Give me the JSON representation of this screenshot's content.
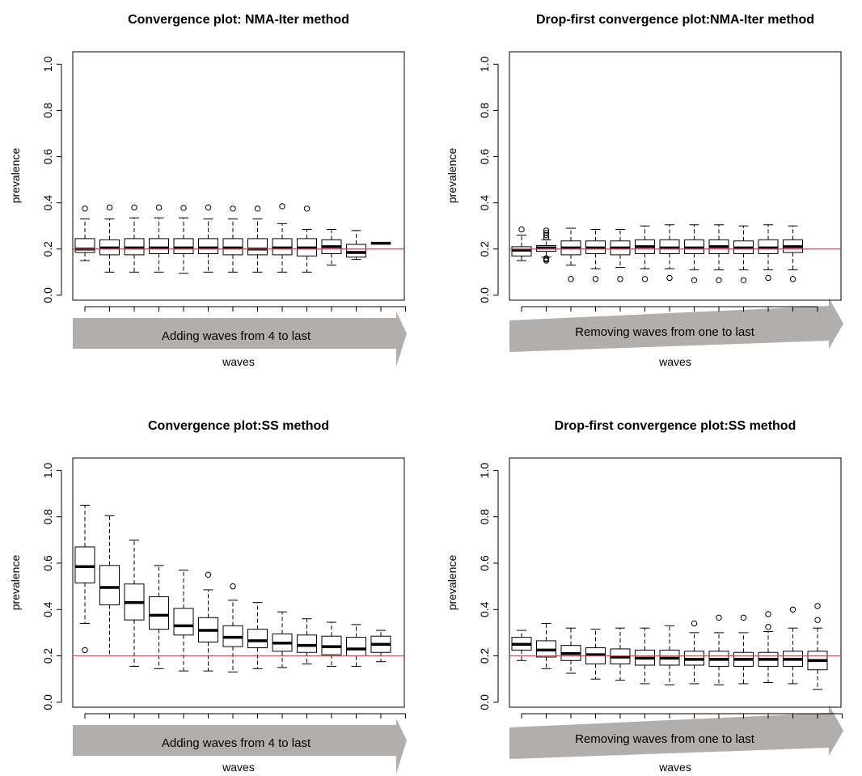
{
  "colors": {
    "reference_line": "#e0403a",
    "arrow_fill": "#b2aeac",
    "box_stroke": "#000000"
  },
  "chart_data": [
    {
      "type": "boxplot",
      "title": "Convergence plot: NMA-Iter method",
      "xlabel": "waves",
      "ylabel": "prevalence",
      "arrow_label": "Adding waves from 4 to last",
      "arrow_shape": "flat",
      "ylim": [
        0,
        1
      ],
      "yticks": [
        "0.0",
        "0.2",
        "0.4",
        "0.6",
        "0.8",
        "1.0"
      ],
      "reference_line": 0.2,
      "grid": false,
      "boxes": [
        {
          "lw": 0.15,
          "q1": 0.185,
          "med": 0.2,
          "q3": 0.245,
          "uw": 0.33,
          "out": [
            0.375
          ]
        },
        {
          "lw": 0.1,
          "q1": 0.175,
          "med": 0.205,
          "q3": 0.24,
          "uw": 0.33,
          "out": [
            0.38
          ]
        },
        {
          "lw": 0.1,
          "q1": 0.175,
          "med": 0.205,
          "q3": 0.245,
          "uw": 0.335,
          "out": [
            0.38
          ]
        },
        {
          "lw": 0.1,
          "q1": 0.18,
          "med": 0.205,
          "q3": 0.245,
          "uw": 0.335,
          "out": [
            0.38
          ]
        },
        {
          "lw": 0.095,
          "q1": 0.18,
          "med": 0.205,
          "q3": 0.245,
          "uw": 0.335,
          "out": [
            0.378
          ]
        },
        {
          "lw": 0.1,
          "q1": 0.18,
          "med": 0.205,
          "q3": 0.245,
          "uw": 0.33,
          "out": [
            0.38
          ]
        },
        {
          "lw": 0.1,
          "q1": 0.175,
          "med": 0.205,
          "q3": 0.245,
          "uw": 0.33,
          "out": [
            0.375
          ]
        },
        {
          "lw": 0.1,
          "q1": 0.175,
          "med": 0.2,
          "q3": 0.245,
          "uw": 0.33,
          "out": [
            0.375
          ]
        },
        {
          "lw": 0.1,
          "q1": 0.175,
          "med": 0.205,
          "q3": 0.245,
          "uw": 0.31,
          "out": [
            0.385
          ]
        },
        {
          "lw": 0.1,
          "q1": 0.17,
          "med": 0.205,
          "q3": 0.245,
          "uw": 0.285,
          "out": [
            0.375
          ]
        },
        {
          "lw": 0.13,
          "q1": 0.18,
          "med": 0.21,
          "q3": 0.24,
          "uw": 0.285,
          "out": []
        },
        {
          "lw": 0.155,
          "q1": 0.165,
          "med": 0.185,
          "q3": 0.22,
          "uw": 0.28,
          "out": []
        },
        {
          "lw": 0.225,
          "q1": 0.225,
          "med": 0.225,
          "q3": 0.225,
          "uw": 0.225,
          "out": []
        }
      ]
    },
    {
      "type": "boxplot",
      "title": "Drop-first convergence plot:NMA-Iter method",
      "xlabel": "waves",
      "ylabel": "prevalence",
      "arrow_label": "Removing waves from one to last",
      "arrow_shape": "taper",
      "ylim": [
        0,
        1
      ],
      "yticks": [
        "0.0",
        "0.2",
        "0.4",
        "0.6",
        "0.8",
        "1.0"
      ],
      "reference_line": 0.2,
      "grid": false,
      "boxes": [
        {
          "lw": 0.15,
          "q1": 0.17,
          "med": 0.195,
          "q3": 0.21,
          "uw": 0.26,
          "out": [
            0.285
          ]
        },
        {
          "lw": 0.165,
          "q1": 0.19,
          "med": 0.205,
          "q3": 0.215,
          "uw": 0.24,
          "out": [
            0.15,
            0.155,
            0.16,
            0.25,
            0.26,
            0.27,
            0.28
          ]
        },
        {
          "lw": 0.13,
          "q1": 0.175,
          "med": 0.205,
          "q3": 0.235,
          "uw": 0.29,
          "out": [
            0.07
          ]
        },
        {
          "lw": 0.115,
          "q1": 0.18,
          "med": 0.205,
          "q3": 0.235,
          "uw": 0.285,
          "out": [
            0.07
          ]
        },
        {
          "lw": 0.12,
          "q1": 0.175,
          "med": 0.205,
          "q3": 0.235,
          "uw": 0.285,
          "out": [
            0.07
          ]
        },
        {
          "lw": 0.115,
          "q1": 0.18,
          "med": 0.21,
          "q3": 0.24,
          "uw": 0.3,
          "out": [
            0.07
          ]
        },
        {
          "lw": 0.115,
          "q1": 0.18,
          "med": 0.205,
          "q3": 0.24,
          "uw": 0.305,
          "out": [
            0.075
          ]
        },
        {
          "lw": 0.11,
          "q1": 0.18,
          "med": 0.205,
          "q3": 0.24,
          "uw": 0.305,
          "out": [
            0.065
          ]
        },
        {
          "lw": 0.11,
          "q1": 0.18,
          "med": 0.21,
          "q3": 0.24,
          "uw": 0.305,
          "out": [
            0.065
          ]
        },
        {
          "lw": 0.11,
          "q1": 0.18,
          "med": 0.205,
          "q3": 0.235,
          "uw": 0.3,
          "out": [
            0.065
          ]
        },
        {
          "lw": 0.11,
          "q1": 0.18,
          "med": 0.205,
          "q3": 0.24,
          "uw": 0.305,
          "out": [
            0.075
          ]
        },
        {
          "lw": 0.11,
          "q1": 0.185,
          "med": 0.21,
          "q3": 0.24,
          "uw": 0.3,
          "out": [
            0.07
          ]
        }
      ]
    },
    {
      "type": "boxplot",
      "title": "Convergence plot:SS method",
      "xlabel": "waves",
      "ylabel": "prevalence",
      "arrow_label": "Adding waves from 4 to last",
      "arrow_shape": "flat",
      "ylim": [
        0,
        1
      ],
      "yticks": [
        "0.0",
        "0.2",
        "0.4",
        "0.6",
        "0.8",
        "1.0"
      ],
      "reference_line": 0.2,
      "grid": false,
      "boxes": [
        {
          "lw": 0.34,
          "q1": 0.515,
          "med": 0.585,
          "q3": 0.67,
          "uw": 0.85,
          "out": [
            0.225
          ]
        },
        {
          "lw": 0.2,
          "q1": 0.42,
          "med": 0.495,
          "q3": 0.59,
          "uw": 0.805,
          "out": []
        },
        {
          "lw": 0.155,
          "q1": 0.355,
          "med": 0.43,
          "q3": 0.51,
          "uw": 0.7,
          "out": []
        },
        {
          "lw": 0.145,
          "q1": 0.315,
          "med": 0.375,
          "q3": 0.455,
          "uw": 0.59,
          "out": []
        },
        {
          "lw": 0.135,
          "q1": 0.29,
          "med": 0.33,
          "q3": 0.405,
          "uw": 0.57,
          "out": []
        },
        {
          "lw": 0.135,
          "q1": 0.26,
          "med": 0.31,
          "q3": 0.365,
          "uw": 0.485,
          "out": [
            0.55
          ]
        },
        {
          "lw": 0.13,
          "q1": 0.24,
          "med": 0.28,
          "q3": 0.33,
          "uw": 0.44,
          "out": [
            0.5
          ]
        },
        {
          "lw": 0.145,
          "q1": 0.235,
          "med": 0.265,
          "q3": 0.315,
          "uw": 0.43,
          "out": []
        },
        {
          "lw": 0.15,
          "q1": 0.22,
          "med": 0.255,
          "q3": 0.295,
          "uw": 0.39,
          "out": []
        },
        {
          "lw": 0.165,
          "q1": 0.215,
          "med": 0.245,
          "q3": 0.29,
          "uw": 0.36,
          "out": []
        },
        {
          "lw": 0.155,
          "q1": 0.205,
          "med": 0.24,
          "q3": 0.285,
          "uw": 0.345,
          "out": []
        },
        {
          "lw": 0.155,
          "q1": 0.2,
          "med": 0.23,
          "q3": 0.28,
          "uw": 0.335,
          "out": []
        },
        {
          "lw": 0.175,
          "q1": 0.215,
          "med": 0.25,
          "q3": 0.285,
          "uw": 0.31,
          "out": []
        }
      ]
    },
    {
      "type": "boxplot",
      "title": "Drop-first convergence plot:SS method",
      "xlabel": "waves",
      "ylabel": "prevalence",
      "arrow_label": "Removing waves from one to last",
      "arrow_shape": "taper",
      "ylim": [
        0,
        1
      ],
      "yticks": [
        "0.0",
        "0.2",
        "0.4",
        "0.6",
        "0.8",
        "1.0"
      ],
      "reference_line": 0.2,
      "grid": false,
      "boxes": [
        {
          "lw": 0.18,
          "q1": 0.225,
          "med": 0.25,
          "q3": 0.28,
          "uw": 0.31,
          "out": []
        },
        {
          "lw": 0.145,
          "q1": 0.195,
          "med": 0.225,
          "q3": 0.265,
          "uw": 0.34,
          "out": []
        },
        {
          "lw": 0.125,
          "q1": 0.18,
          "med": 0.21,
          "q3": 0.245,
          "uw": 0.32,
          "out": []
        },
        {
          "lw": 0.1,
          "q1": 0.165,
          "med": 0.205,
          "q3": 0.235,
          "uw": 0.315,
          "out": []
        },
        {
          "lw": 0.095,
          "q1": 0.165,
          "med": 0.195,
          "q3": 0.23,
          "uw": 0.32,
          "out": []
        },
        {
          "lw": 0.08,
          "q1": 0.16,
          "med": 0.19,
          "q3": 0.225,
          "uw": 0.32,
          "out": []
        },
        {
          "lw": 0.075,
          "q1": 0.16,
          "med": 0.19,
          "q3": 0.225,
          "uw": 0.33,
          "out": []
        },
        {
          "lw": 0.08,
          "q1": 0.16,
          "med": 0.185,
          "q3": 0.22,
          "uw": 0.3,
          "out": [
            0.34
          ]
        },
        {
          "lw": 0.075,
          "q1": 0.155,
          "med": 0.185,
          "q3": 0.22,
          "uw": 0.3,
          "out": [
            0.365
          ]
        },
        {
          "lw": 0.08,
          "q1": 0.155,
          "med": 0.185,
          "q3": 0.215,
          "uw": 0.3,
          "out": [
            0.365
          ]
        },
        {
          "lw": 0.085,
          "q1": 0.155,
          "med": 0.185,
          "q3": 0.215,
          "uw": 0.305,
          "out": [
            0.325,
            0.38
          ]
        },
        {
          "lw": 0.08,
          "q1": 0.155,
          "med": 0.185,
          "q3": 0.22,
          "uw": 0.32,
          "out": [
            0.4
          ]
        },
        {
          "lw": 0.055,
          "q1": 0.14,
          "med": 0.18,
          "q3": 0.22,
          "uw": 0.32,
          "out": [
            0.355,
            0.415
          ]
        }
      ]
    }
  ]
}
